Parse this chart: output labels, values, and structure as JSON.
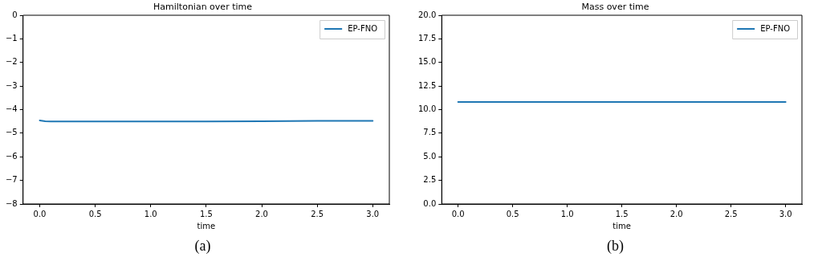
{
  "chart_data": [
    {
      "type": "line",
      "title": "Hamiltonian over time",
      "xlabel": "time",
      "x": [
        0,
        0.05,
        0.1,
        0.25,
        0.5,
        1,
        1.5,
        2,
        2.5,
        3
      ],
      "series": [
        {
          "name": "EP-FNO",
          "color": "#1f77b4",
          "values": [
            -4.46,
            -4.49,
            -4.5,
            -4.5,
            -4.5,
            -4.5,
            -4.5,
            -4.49,
            -4.48,
            -4.48
          ]
        }
      ],
      "xlim": [
        -0.15,
        3.15
      ],
      "xticks": [
        {
          "value": 0,
          "label": "0.0"
        },
        {
          "value": 0.5,
          "label": "0.5"
        },
        {
          "value": 1,
          "label": "1.0"
        },
        {
          "value": 1.5,
          "label": "1.5"
        },
        {
          "value": 2,
          "label": "2.0"
        },
        {
          "value": 2.5,
          "label": "2.5"
        },
        {
          "value": 3,
          "label": "3.0"
        }
      ],
      "ylim": [
        -8,
        0
      ],
      "yticks": [
        {
          "value": -8,
          "label": "−8"
        },
        {
          "value": -7,
          "label": "−7"
        },
        {
          "value": -6,
          "label": "−6"
        },
        {
          "value": -5,
          "label": "−5"
        },
        {
          "value": -4,
          "label": "−4"
        },
        {
          "value": -3,
          "label": "−3"
        },
        {
          "value": -2,
          "label": "−2"
        },
        {
          "value": -1,
          "label": "−1"
        },
        0
      ],
      "legend": "top right",
      "grid": false,
      "marker": "none",
      "line_style": "solid",
      "annotations": [
        "(a)"
      ]
    },
    {
      "type": "line",
      "title": "Mass over time",
      "xlabel": "time",
      "x": [
        0,
        3
      ],
      "series": [
        {
          "name": "EP-FNO",
          "color": "#1f77b4",
          "values": [
            10.8,
            10.8
          ]
        }
      ],
      "xlim": [
        -0.15,
        3.15
      ],
      "xticks": [
        {
          "value": 0,
          "label": "0.0"
        },
        {
          "value": 0.5,
          "label": "0.5"
        },
        {
          "value": 1,
          "label": "1.0"
        },
        {
          "value": 1.5,
          "label": "1.5"
        },
        {
          "value": 2,
          "label": "2.0"
        },
        {
          "value": 2.5,
          "label": "2.5"
        },
        {
          "value": 3,
          "label": "3.0"
        }
      ],
      "ylim": [
        0,
        20
      ],
      "yticks": [
        {
          "value": 0,
          "label": "0.0"
        },
        {
          "value": 2.5,
          "label": "2.5"
        },
        {
          "value": 5,
          "label": "5.0"
        },
        {
          "value": 7.5,
          "label": "7.5"
        },
        {
          "value": 10,
          "label": "10.0"
        },
        {
          "value": 12.5,
          "label": "12.5"
        },
        {
          "value": 15,
          "label": "15.0"
        },
        {
          "value": 17.5,
          "label": "17.5"
        },
        {
          "value": 20,
          "label": "20.0"
        }
      ],
      "legend": "top right",
      "grid": false,
      "marker": "none",
      "line_style": "solid",
      "annotations": [
        "(b)"
      ]
    }
  ]
}
